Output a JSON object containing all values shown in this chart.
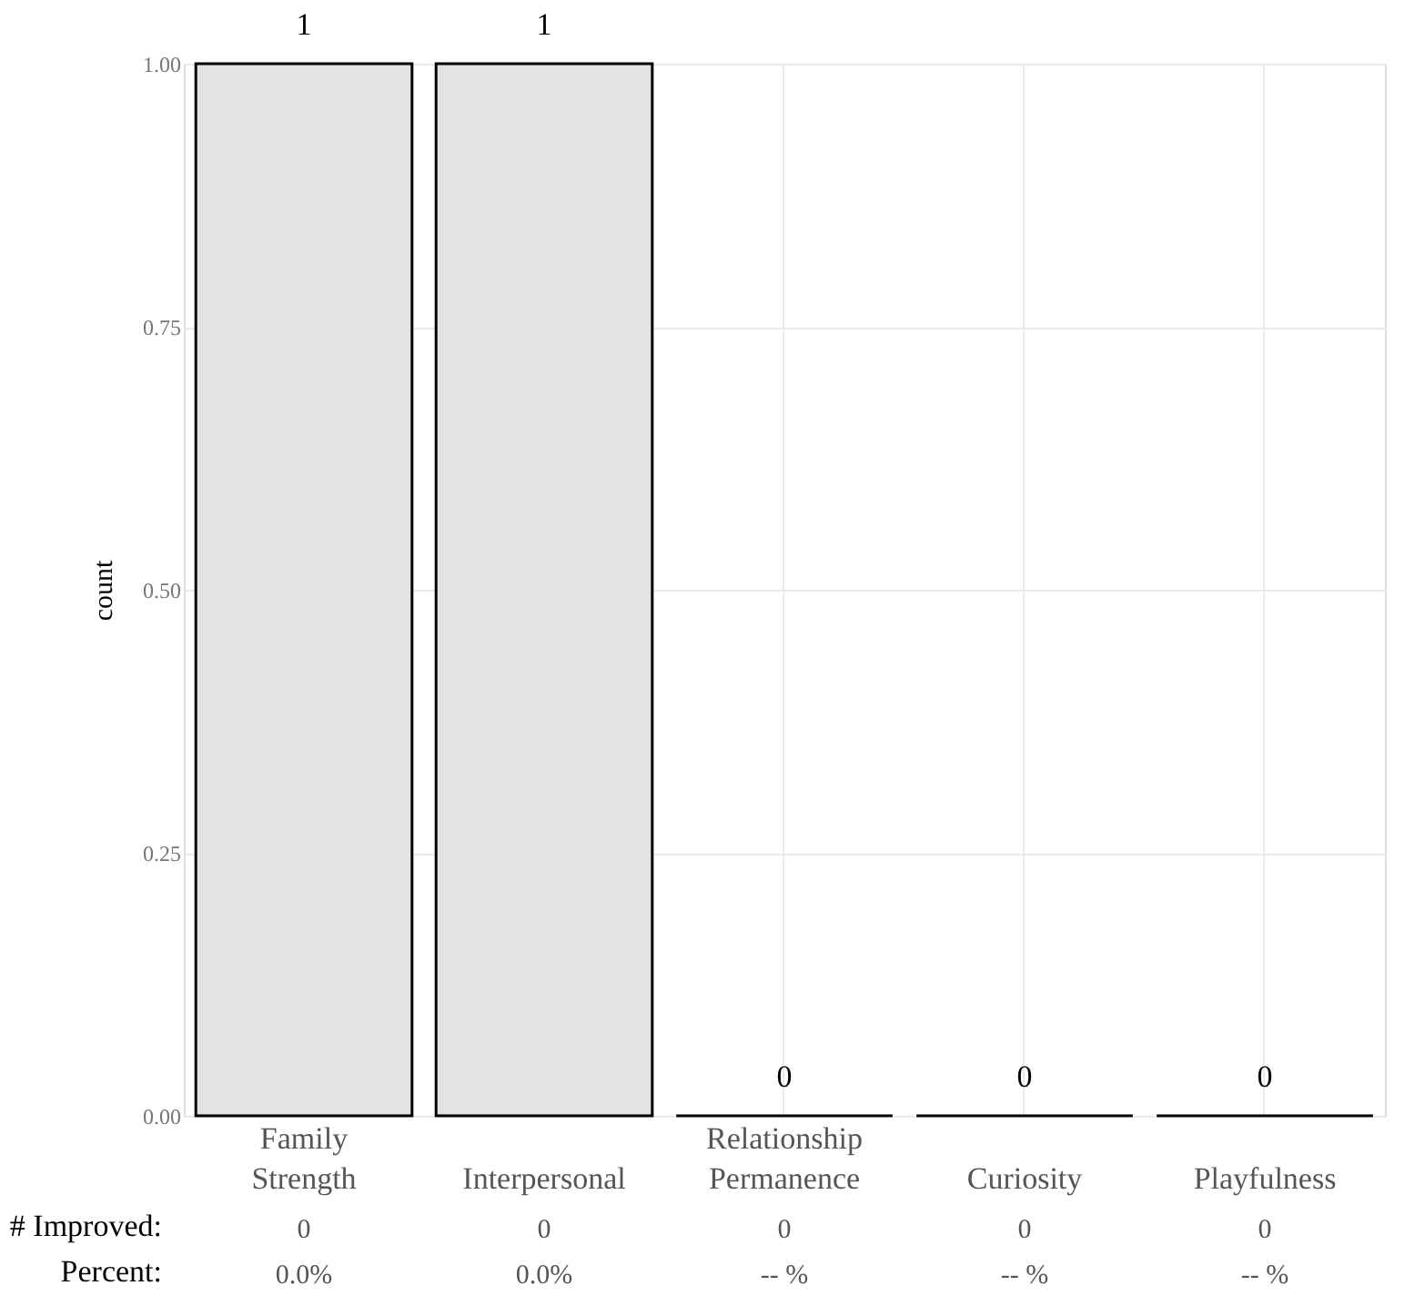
{
  "chart_data": {
    "type": "bar",
    "ylabel": "count",
    "categories": [
      "Family Strength",
      "Interpersonal",
      "Relationship Permanence",
      "Curiosity",
      "Playfulness"
    ],
    "values": [
      1,
      1,
      0,
      0,
      0
    ],
    "color": "#e3e3e3",
    "data_labels": true,
    "ylim": [
      0,
      1
    ],
    "yticks": [
      {
        "value": 0,
        "label": "0.00"
      },
      {
        "value": 0.25,
        "label": "0.25"
      },
      {
        "value": 0.5,
        "label": "0.50"
      },
      {
        "value": 0.75,
        "label": "0.75"
      },
      {
        "value": 1,
        "label": "1.00"
      }
    ],
    "grid": true,
    "annotations": [
      "# Improved:",
      "0",
      "0",
      "0",
      "0",
      "0",
      "Percent:",
      "0.0%",
      "0.0%",
      "-- %",
      "-- %",
      "-- %"
    ]
  }
}
